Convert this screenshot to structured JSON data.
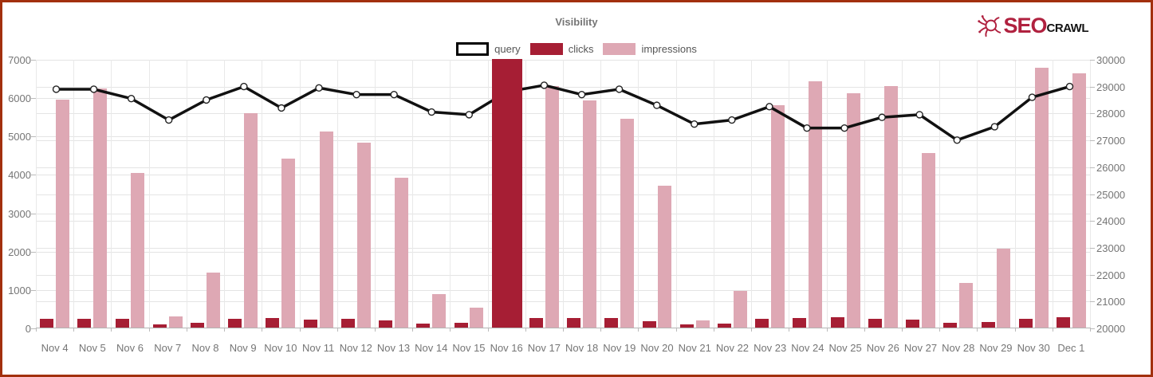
{
  "page": {
    "title": "Visibility"
  },
  "logo": {
    "icon": "spider-crawler-icon",
    "text_primary": "SEO",
    "text_secondary": "CRAWL",
    "color_primary": "#b0213f",
    "color_secondary": "#141414"
  },
  "legend": [
    {
      "label": "query",
      "swatch_style": "outlined-white",
      "fill": "#ffffff",
      "border": "#000000"
    },
    {
      "label": "clicks",
      "swatch_style": "solid",
      "fill": "#a61e34"
    },
    {
      "label": "impressions",
      "swatch_style": "solid",
      "fill": "#dea8b4"
    }
  ],
  "chart_data": {
    "type": "bar",
    "subtype": "grouped bars with overlaid line (combo chart)",
    "title": "Visibility",
    "xlabel": "",
    "ylabel_left": "",
    "ylabel_right": "",
    "grid": true,
    "legend_position": "top-center",
    "categories": [
      "Nov 4",
      "Nov 5",
      "Nov 6",
      "Nov 7",
      "Nov 8",
      "Nov 9",
      "Nov 10",
      "Nov 11",
      "Nov 12",
      "Nov 13",
      "Nov 14",
      "Nov 15",
      "Nov 16",
      "Nov 17",
      "Nov 18",
      "Nov 19",
      "Nov 20",
      "Nov 21",
      "Nov 22",
      "Nov 23",
      "Nov 24",
      "Nov 25",
      "Nov 26",
      "Nov 27",
      "Nov 28",
      "Nov 29",
      "Nov 30",
      "Dec 1"
    ],
    "series": [
      {
        "name": "query",
        "type": "line",
        "axis": "right",
        "color": "#111111",
        "marker": "open-circle",
        "values": [
          28900,
          28900,
          28550,
          27750,
          28500,
          29000,
          28200,
          28950,
          28700,
          28700,
          28050,
          27950,
          28800,
          29050,
          28700,
          28900,
          28300,
          27600,
          27750,
          28250,
          27450,
          27450,
          27850,
          27950,
          27000,
          27500,
          28600,
          29000
        ]
      },
      {
        "name": "clicks",
        "type": "bar",
        "axis": "left",
        "color": "#a61e34",
        "values": [
          230,
          220,
          220,
          90,
          120,
          230,
          240,
          200,
          230,
          190,
          100,
          120,
          7000,
          250,
          250,
          240,
          160,
          90,
          100,
          230,
          250,
          270,
          220,
          210,
          115,
          140,
          230,
          260
        ]
      },
      {
        "name": "impressions",
        "type": "bar",
        "axis": "left",
        "color": "#dea8b4",
        "values": [
          5950,
          6230,
          4030,
          300,
          1440,
          5590,
          4400,
          5100,
          4820,
          3900,
          870,
          520,
          null,
          6300,
          5930,
          5450,
          3700,
          190,
          950,
          5800,
          6420,
          6100,
          6290,
          4550,
          1160,
          2060,
          6780,
          6620
        ]
      }
    ],
    "left_axis": {
      "min": 0,
      "max": 7000,
      "step": 1000,
      "tick_labels": [
        "0",
        "1000",
        "2000",
        "3000",
        "4000",
        "5000",
        "6000",
        "7000"
      ]
    },
    "right_axis": {
      "min": 20000,
      "max": 30000,
      "step": 1000,
      "tick_labels": [
        "20000",
        "21000",
        "22000",
        "23000",
        "24000",
        "25000",
        "26000",
        "27000",
        "28000",
        "29000",
        "30000"
      ]
    },
    "annotations": {
      "nov16_spike": "clicks bar on Nov 16 is clipped at the 7000 axis maximum and spans the full group width, hiding the impressions bar and the query line marker for that day"
    }
  }
}
